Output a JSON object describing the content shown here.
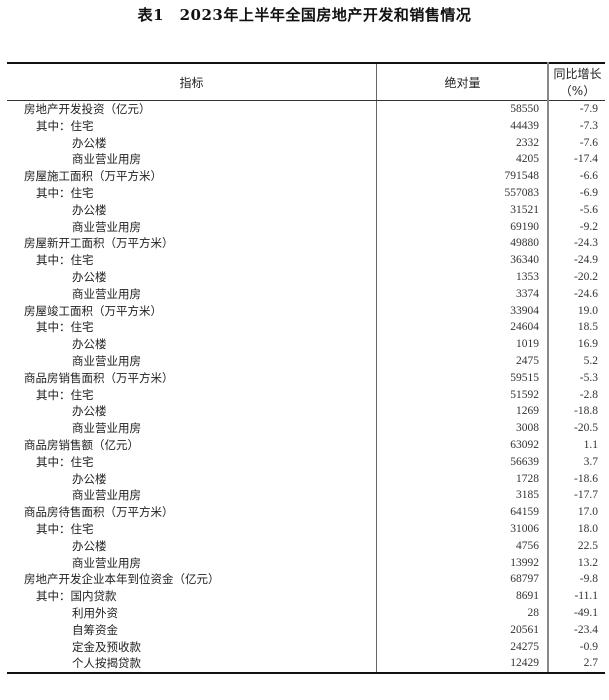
{
  "title": "表1　2023年上半年全国房地产开发和销售情况",
  "headers": [
    "指标",
    "绝对量",
    "同比增长（%）"
  ],
  "rows": [
    {
      "label": "房地产开发投资（亿元）",
      "level": 0,
      "value": "58550",
      "growth": "-7.9"
    },
    {
      "label": "其中：住宅",
      "level": 1,
      "value": "44439",
      "growth": "-7.3"
    },
    {
      "label": "办公楼",
      "level": 2,
      "value": "2332",
      "growth": "-7.6"
    },
    {
      "label": "商业营业用房",
      "level": 2,
      "value": "4205",
      "growth": "-17.4"
    },
    {
      "label": "房屋施工面积（万平方米）",
      "level": 0,
      "value": "791548",
      "growth": "-6.6"
    },
    {
      "label": "其中：住宅",
      "level": 1,
      "value": "557083",
      "growth": "-6.9"
    },
    {
      "label": "办公楼",
      "level": 2,
      "value": "31521",
      "growth": "-5.6"
    },
    {
      "label": "商业营业用房",
      "level": 2,
      "value": "69190",
      "growth": "-9.2"
    },
    {
      "label": "房屋新开工面积（万平方米）",
      "level": 0,
      "value": "49880",
      "growth": "-24.3"
    },
    {
      "label": "其中：住宅",
      "level": 1,
      "value": "36340",
      "growth": "-24.9"
    },
    {
      "label": "办公楼",
      "level": 2,
      "value": "1353",
      "growth": "-20.2"
    },
    {
      "label": "商业营业用房",
      "level": 2,
      "value": "3374",
      "growth": "-24.6"
    },
    {
      "label": "房屋竣工面积（万平方米）",
      "level": 0,
      "value": "33904",
      "growth": "19.0"
    },
    {
      "label": "其中：住宅",
      "level": 1,
      "value": "24604",
      "growth": "18.5"
    },
    {
      "label": "办公楼",
      "level": 2,
      "value": "1019",
      "growth": "16.9"
    },
    {
      "label": "商业营业用房",
      "level": 2,
      "value": "2475",
      "growth": "5.2"
    },
    {
      "label": "商品房销售面积（万平方米）",
      "level": 0,
      "value": "59515",
      "growth": "-5.3"
    },
    {
      "label": "其中：住宅",
      "level": 1,
      "value": "51592",
      "growth": "-2.8"
    },
    {
      "label": "办公楼",
      "level": 2,
      "value": "1269",
      "growth": "-18.8"
    },
    {
      "label": "商业营业用房",
      "level": 2,
      "value": "3008",
      "growth": "-20.5"
    },
    {
      "label": "商品房销售额（亿元）",
      "level": 0,
      "value": "63092",
      "growth": "1.1"
    },
    {
      "label": "其中：住宅",
      "level": 1,
      "value": "56639",
      "growth": "3.7"
    },
    {
      "label": "办公楼",
      "level": 2,
      "value": "1728",
      "growth": "-18.6"
    },
    {
      "label": "商业营业用房",
      "level": 2,
      "value": "3185",
      "growth": "-17.7"
    },
    {
      "label": "商品房待售面积（万平方米）",
      "level": 0,
      "value": "64159",
      "growth": "17.0"
    },
    {
      "label": "其中：住宅",
      "level": 1,
      "value": "31006",
      "growth": "18.0"
    },
    {
      "label": "办公楼",
      "level": 2,
      "value": "4756",
      "growth": "22.5"
    },
    {
      "label": "商业营业用房",
      "level": 2,
      "value": "13992",
      "growth": "13.2"
    },
    {
      "label": "房地产开发企业本年到位资金（亿元）",
      "level": 0,
      "value": "68797",
      "growth": "-9.8"
    },
    {
      "label": "其中：国内贷款",
      "level": 1,
      "value": "8691",
      "growth": "-11.1"
    },
    {
      "label": "利用外资",
      "level": 2,
      "value": "28",
      "growth": "-49.1"
    },
    {
      "label": "自筹资金",
      "level": 2,
      "value": "20561",
      "growth": "-23.4"
    },
    {
      "label": "定金及预收款",
      "level": 2,
      "value": "24275",
      "growth": "-0.9"
    },
    {
      "label": "个人按揭贷款",
      "level": 2,
      "value": "12429",
      "growth": "2.7"
    }
  ]
}
